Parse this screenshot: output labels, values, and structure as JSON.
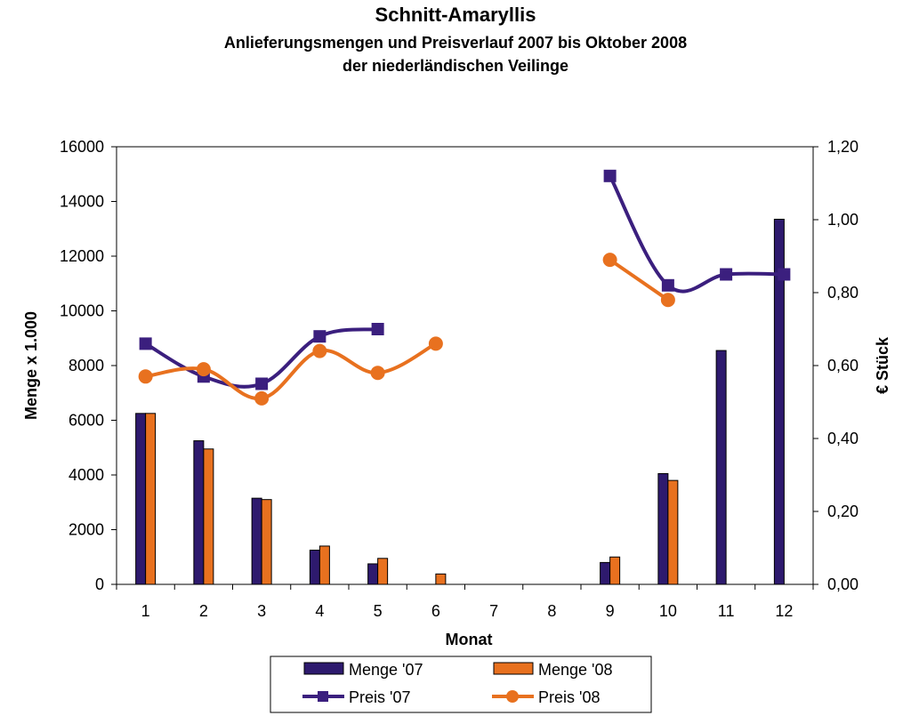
{
  "chart_data": {
    "type": "bar",
    "title": "Schnitt-Amaryllis",
    "subtitle_line1": "Anlieferungsmengen und Preisverlauf 2007 bis Oktober 2008",
    "subtitle_line2": "der niederländischen Veilinge",
    "xlabel": "Monat",
    "ylabel": "Menge x 1.000",
    "y2label": "€ Stück",
    "categories": [
      "1",
      "2",
      "3",
      "4",
      "5",
      "6",
      "7",
      "8",
      "9",
      "10",
      "11",
      "12"
    ],
    "ylim": [
      0,
      16000
    ],
    "y2lim": [
      0,
      1.2
    ],
    "y_ticks": [
      "0",
      "2000",
      "4000",
      "6000",
      "8000",
      "10000",
      "12000",
      "14000",
      "16000"
    ],
    "y2_ticks": [
      "0,00",
      "0,20",
      "0,40",
      "0,60",
      "0,80",
      "1,00",
      "1,20"
    ],
    "legend_position": "bottom",
    "grid": false,
    "bar_series": [
      {
        "name": "Menge '07",
        "color": "#2e1a6e",
        "values": [
          6250,
          5250,
          3150,
          1250,
          750,
          null,
          null,
          null,
          800,
          4050,
          8550,
          13350
        ]
      },
      {
        "name": "Menge '08",
        "color": "#e8711f",
        "values": [
          6250,
          4950,
          3100,
          1400,
          950,
          380,
          null,
          null,
          1000,
          3800,
          null,
          null
        ]
      }
    ],
    "line_series": [
      {
        "name": "Preis '07",
        "color": "#3b1f7e",
        "marker": "square",
        "values": [
          0.66,
          0.57,
          0.55,
          0.68,
          0.7,
          null,
          null,
          null,
          1.12,
          0.82,
          0.85,
          0.85
        ]
      },
      {
        "name": "Preis '08",
        "color": "#e8711f",
        "marker": "circle",
        "values": [
          0.57,
          0.59,
          0.51,
          0.64,
          0.58,
          0.66,
          null,
          null,
          0.89,
          0.78,
          null,
          null
        ]
      }
    ]
  }
}
